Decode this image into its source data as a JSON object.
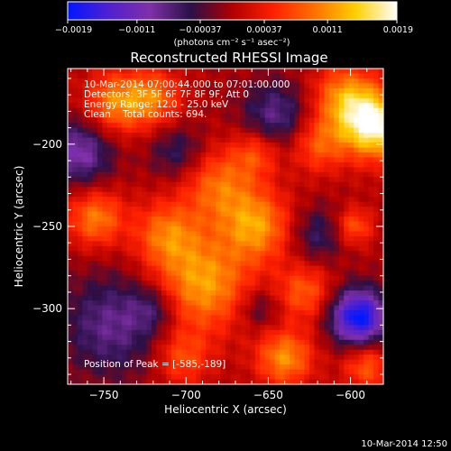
{
  "chart_data": {
    "type": "heatmap",
    "title": "Reconstructed RHESSI Image",
    "xlabel": "Heliocentric X (arcsec)",
    "ylabel": "Heliocentric Y (arcsec)",
    "xlim": [
      -772,
      -580
    ],
    "ylim": [
      -346,
      -154
    ],
    "x_ticks": [
      -750,
      -700,
      -650,
      -600
    ],
    "y_ticks": [
      -200,
      -250,
      -300
    ],
    "x_tick_labels": [
      "−750",
      "−700",
      "−650",
      "−600"
    ],
    "y_tick_labels": [
      "−200",
      "−250",
      "−300"
    ],
    "colorbar": {
      "range": [
        -0.0019,
        0.0019
      ],
      "tick_values": [
        -0.0019,
        -0.0011,
        -0.00037,
        0.00037,
        0.0011,
        0.0019
      ],
      "tick_labels": [
        "−0.0019",
        "−0.0011",
        "−0.00037",
        "0.00037",
        "0.0011",
        "0.0019"
      ],
      "unit_label": "(photons cm⁻² s⁻¹ asec⁻²)",
      "colormap": [
        "#0018ff",
        "#5020d0",
        "#8030a8",
        "#2a1048",
        "#b00000",
        "#ff2000",
        "#ff7000",
        "#ffd000",
        "#ffffff"
      ]
    },
    "annotations": {
      "time_range": "10-Mar-2014 07:00:44.000 to 07:01:00.000",
      "detectors": "Detectors: 3F 5F 6F 7F 8F 9F, Att 0",
      "energy_range": "Energy Range: 12.0 - 25.0 keV",
      "clean_counts": "Clean    Total counts: 694.",
      "peak": "Position of Peak = [-585,-189]"
    },
    "blobs": [
      {
        "x": -690,
        "y": -285,
        "sigma": 20,
        "amp": 0.0012
      },
      {
        "x": -680,
        "y": -225,
        "sigma": 16,
        "amp": 0.0009
      },
      {
        "x": -712,
        "y": -255,
        "sigma": 14,
        "amp": 0.0009
      },
      {
        "x": -755,
        "y": -245,
        "sigma": 12,
        "amp": 0.001
      },
      {
        "x": -743,
        "y": -175,
        "sigma": 13,
        "amp": 0.001
      },
      {
        "x": -720,
        "y": -172,
        "sigma": 12,
        "amp": 0.0009
      },
      {
        "x": -657,
        "y": -250,
        "sigma": 15,
        "amp": 0.0011
      },
      {
        "x": -657,
        "y": -205,
        "sigma": 10,
        "amp": 0.0007
      },
      {
        "x": -628,
        "y": -290,
        "sigma": 12,
        "amp": 0.0008
      },
      {
        "x": -640,
        "y": -330,
        "sigma": 12,
        "amp": 0.0011
      },
      {
        "x": -585,
        "y": -189,
        "sigma": 14,
        "amp": 0.0018
      },
      {
        "x": -603,
        "y": -172,
        "sigma": 14,
        "amp": 0.0011
      },
      {
        "x": -598,
        "y": -250,
        "sigma": 8,
        "amp": 0.0008
      },
      {
        "x": -620,
        "y": -200,
        "sigma": 12,
        "amp": 0.0008
      },
      {
        "x": -590,
        "y": -335,
        "sigma": 10,
        "amp": 0.0008
      },
      {
        "x": -702,
        "y": -330,
        "sigma": 12,
        "amp": 0.0007
      },
      {
        "x": -595,
        "y": -305,
        "sigma": 12,
        "amp": -0.0019
      },
      {
        "x": -765,
        "y": -205,
        "sigma": 14,
        "amp": -0.001
      },
      {
        "x": -745,
        "y": -310,
        "sigma": 22,
        "amp": -0.0008
      },
      {
        "x": -645,
        "y": -183,
        "sigma": 15,
        "amp": -0.0008
      },
      {
        "x": -705,
        "y": -205,
        "sigma": 12,
        "amp": -0.0006
      },
      {
        "x": -620,
        "y": -255,
        "sigma": 12,
        "amp": -0.0006
      },
      {
        "x": -720,
        "y": -300,
        "sigma": 10,
        "amp": -0.0005
      },
      {
        "x": -655,
        "y": -300,
        "sigma": 9,
        "amp": -0.0005
      }
    ]
  },
  "footer": {
    "timestamp": "10-Mar-2014 12:50"
  }
}
